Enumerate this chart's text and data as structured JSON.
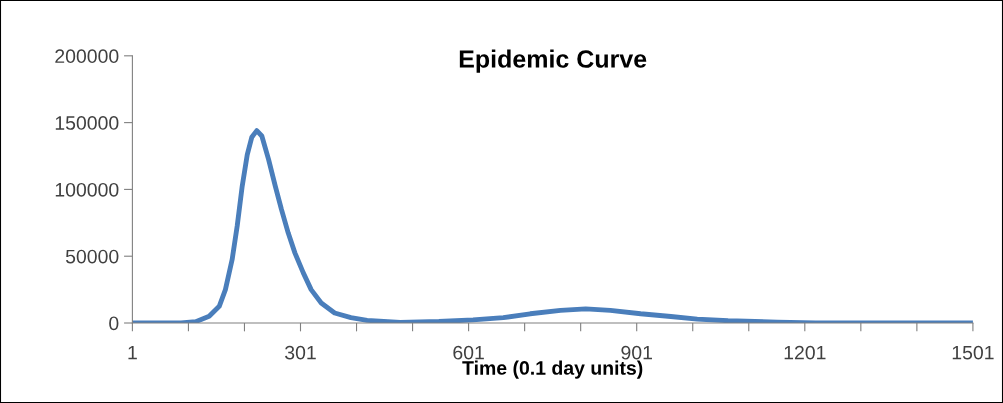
{
  "chart_data": {
    "type": "line",
    "title": "Epidemic Curve",
    "xlabel": "Time (0.1 day units)",
    "series": [
      {
        "color": "#4a7ebb",
        "x": [
          1,
          88,
          114,
          138,
          156,
          167,
          179,
          188,
          197,
          206,
          214,
          223,
          232,
          244,
          256,
          267,
          279,
          291,
          306,
          320,
          338,
          362,
          391,
          420,
          479,
          548,
          609,
          663,
          711,
          765,
          810,
          854,
          908,
          962,
          1009,
          1064,
          1152,
          1220,
          1501
        ],
        "values": [
          0,
          0,
          1000,
          5000,
          12500,
          25000,
          47500,
          72500,
          102500,
          126000,
          139000,
          144000,
          140000,
          122500,
          102500,
          85000,
          67500,
          52500,
          37500,
          25000,
          15000,
          7500,
          4000,
          2000,
          500,
          1100,
          2300,
          4000,
          6900,
          9500,
          10600,
          9500,
          6900,
          4900,
          2900,
          1700,
          600,
          0,
          0
        ]
      }
    ],
    "xlim": [
      1,
      1501
    ],
    "xticks": [
      1,
      {
        "value": 101,
        "label": null
      },
      {
        "value": 201,
        "label": null
      },
      301,
      {
        "value": 401,
        "label": null
      },
      {
        "value": 501,
        "label": null
      },
      601,
      {
        "value": 701,
        "label": null
      },
      {
        "value": 801,
        "label": null
      },
      901,
      {
        "value": 1001,
        "label": null
      },
      {
        "value": 1101,
        "label": null
      },
      1201,
      {
        "value": 1301,
        "label": null
      },
      {
        "value": 1401,
        "label": null
      },
      1501
    ],
    "ylim": [
      0,
      200000
    ],
    "yticks": [
      0,
      50000,
      100000,
      150000,
      200000
    ],
    "grid": false,
    "legend": false,
    "marker": "none",
    "line_style": "solid"
  }
}
